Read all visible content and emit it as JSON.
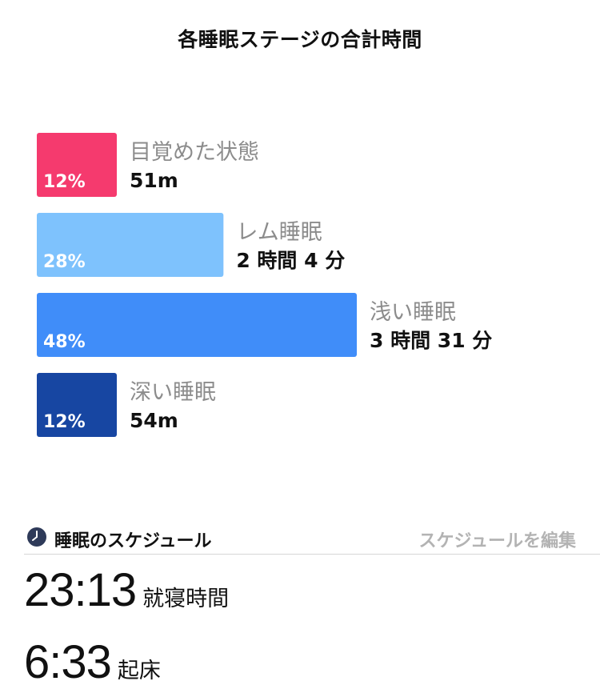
{
  "page": {
    "title": "各睡眠ステージの合計時間"
  },
  "chart_data": {
    "type": "bar",
    "orientation": "horizontal",
    "categories": [
      "目覚めた状態",
      "レム睡眠",
      "浅い睡眠",
      "深い睡眠"
    ],
    "values": [
      12,
      28,
      48,
      12
    ],
    "value_labels": [
      "12%",
      "28%",
      "48%",
      "12%"
    ],
    "durations": [
      "51m",
      "2 時間 4 分",
      "3 時間 31 分",
      "54m"
    ],
    "colors": [
      "#f53a6e",
      "#7ec2fd",
      "#408df9",
      "#1746a2"
    ],
    "title": "各睡眠ステージの合計時間",
    "xlabel": "",
    "ylabel": "",
    "grid": false,
    "legend": "none"
  },
  "schedule": {
    "title": "睡眠のスケジュール",
    "edit_label": "スケジュールを編集",
    "bedtime": {
      "time": "23:13",
      "label": "就寝時間"
    },
    "wake": {
      "time": "6:33",
      "label": "起床"
    }
  },
  "icons": {
    "schedule": "clock-icon"
  },
  "colors": {
    "title_text": "#111111",
    "category_text": "#8c8c8c",
    "edit_link": "#b3b3b3",
    "clock_icon": "#2e3a59"
  }
}
